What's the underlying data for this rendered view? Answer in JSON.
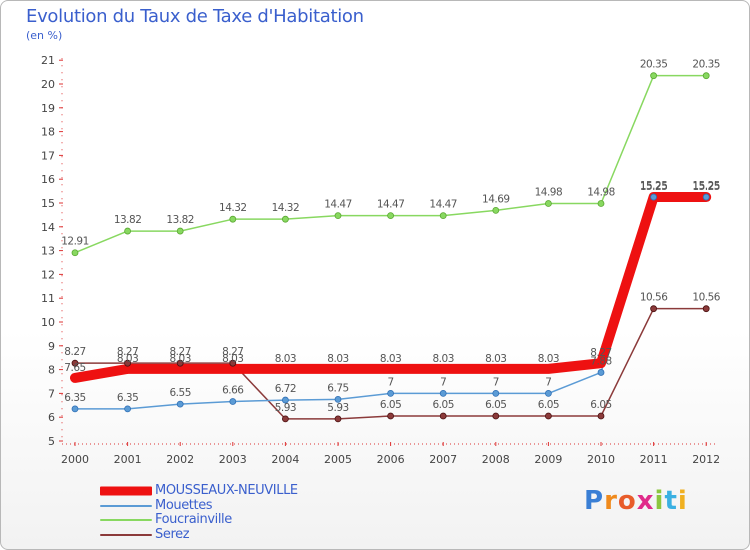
{
  "title": "Evolution du Taux de Taxe d'Habitation",
  "subtitle": "(en %)",
  "logo": {
    "text": "Proxiti",
    "letters": [
      "P",
      "r",
      "o",
      "x",
      "i",
      "t",
      "i"
    ],
    "colors": [
      "#3a7fd5",
      "#f08a1c",
      "#e85c2a",
      "#e02b8a",
      "#8cc63f",
      "#3ab0e2",
      "#f0b020"
    ]
  },
  "chart_data": {
    "type": "line",
    "title": "Evolution du Taux de Taxe d'Habitation",
    "subtitle": "(en %)",
    "x": [
      "2000",
      "2001",
      "2002",
      "2003",
      "2004",
      "2005",
      "2006",
      "2007",
      "2008",
      "2009",
      "2010",
      "2011",
      "2012"
    ],
    "ylim": [
      5,
      21
    ],
    "yticks": [
      5,
      6,
      7,
      8,
      9,
      10,
      11,
      12,
      13,
      14,
      15,
      16,
      17,
      18,
      19,
      20,
      21
    ],
    "grid": false,
    "legend_position": "bottom-left",
    "series": [
      {
        "name": "MOUSSEAUX-NEUVILLE",
        "color": "#ee1111",
        "width": 10,
        "values": [
          7.65,
          8.03,
          8.03,
          8.03,
          8.03,
          8.03,
          8.03,
          8.03,
          8.03,
          8.03,
          8.27,
          15.25,
          15.25
        ],
        "labels": [
          "7.65",
          "8.03",
          "8.03",
          "8.03",
          "8.03",
          "8.03",
          "8.03",
          "8.03",
          "8.03",
          "8.03",
          "8.27",
          "15.25",
          "15.25"
        ]
      },
      {
        "name": "Mouettes",
        "color": "#5b9bd5",
        "width": 1.5,
        "values": [
          6.35,
          6.35,
          6.55,
          6.66,
          6.72,
          6.75,
          7,
          7,
          7,
          7,
          7.88,
          15.25,
          15.25
        ],
        "labels": [
          "6.35",
          "6.35",
          "6.55",
          "6.66",
          "6.72",
          "6.75",
          "7",
          "7",
          "7",
          "7",
          "7.88",
          "15.25",
          "15.25"
        ]
      },
      {
        "name": "Foucrainville",
        "color": "#88d860",
        "width": 1.5,
        "values": [
          12.91,
          13.82,
          13.82,
          14.32,
          14.32,
          14.47,
          14.47,
          14.47,
          14.69,
          14.98,
          14.98,
          20.35,
          20.35
        ],
        "labels": [
          "12.91",
          "13.82",
          "13.82",
          "14.32",
          "14.32",
          "14.47",
          "14.47",
          "14.47",
          "14.69",
          "14.98",
          "14.98",
          "20.35",
          "20.35"
        ]
      },
      {
        "name": "Serez",
        "color": "#8b3a3a",
        "width": 1.5,
        "values": [
          8.27,
          8.27,
          8.27,
          8.27,
          5.93,
          5.93,
          6.05,
          6.05,
          6.05,
          6.05,
          6.05,
          10.56,
          10.56
        ],
        "labels": [
          "8.27",
          "8.27",
          "8.27",
          "8.27",
          "5.93",
          "5.93",
          "6.05",
          "6.05",
          "6.05",
          "6.05",
          "6.05",
          "10.56",
          "10.56"
        ]
      }
    ]
  }
}
